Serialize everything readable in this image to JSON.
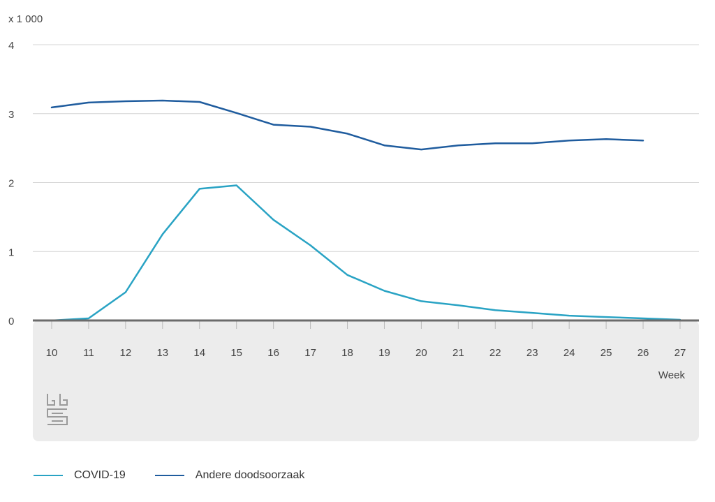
{
  "chart_data": {
    "type": "line",
    "unit_label": "x 1 000",
    "xlabel": "Week",
    "ylabel": "",
    "x": [
      10,
      11,
      12,
      13,
      14,
      15,
      16,
      17,
      18,
      19,
      20,
      21,
      22,
      23,
      24,
      25,
      26,
      27
    ],
    "ylim": [
      0,
      4
    ],
    "yticks": [
      0,
      1,
      2,
      3,
      4
    ],
    "grid": true,
    "legend_position": "bottom-left",
    "series": [
      {
        "name": "COVID-19",
        "color": "#29a3c4",
        "values": [
          0.0,
          0.03,
          0.41,
          1.25,
          1.91,
          1.96,
          1.46,
          1.09,
          0.66,
          0.43,
          0.28,
          0.22,
          0.15,
          0.11,
          0.07,
          0.05,
          0.03,
          0.01
        ]
      },
      {
        "name": "Andere doodsoorzaak",
        "color": "#1f5c9e",
        "values": [
          3.09,
          3.16,
          3.18,
          3.19,
          3.17,
          3.01,
          2.84,
          2.81,
          2.71,
          2.54,
          2.48,
          2.54,
          2.57,
          2.57,
          2.61,
          2.63,
          2.61,
          null
        ]
      }
    ]
  },
  "logo": {
    "text": "cbs",
    "icon": "cbs-logo-icon"
  }
}
